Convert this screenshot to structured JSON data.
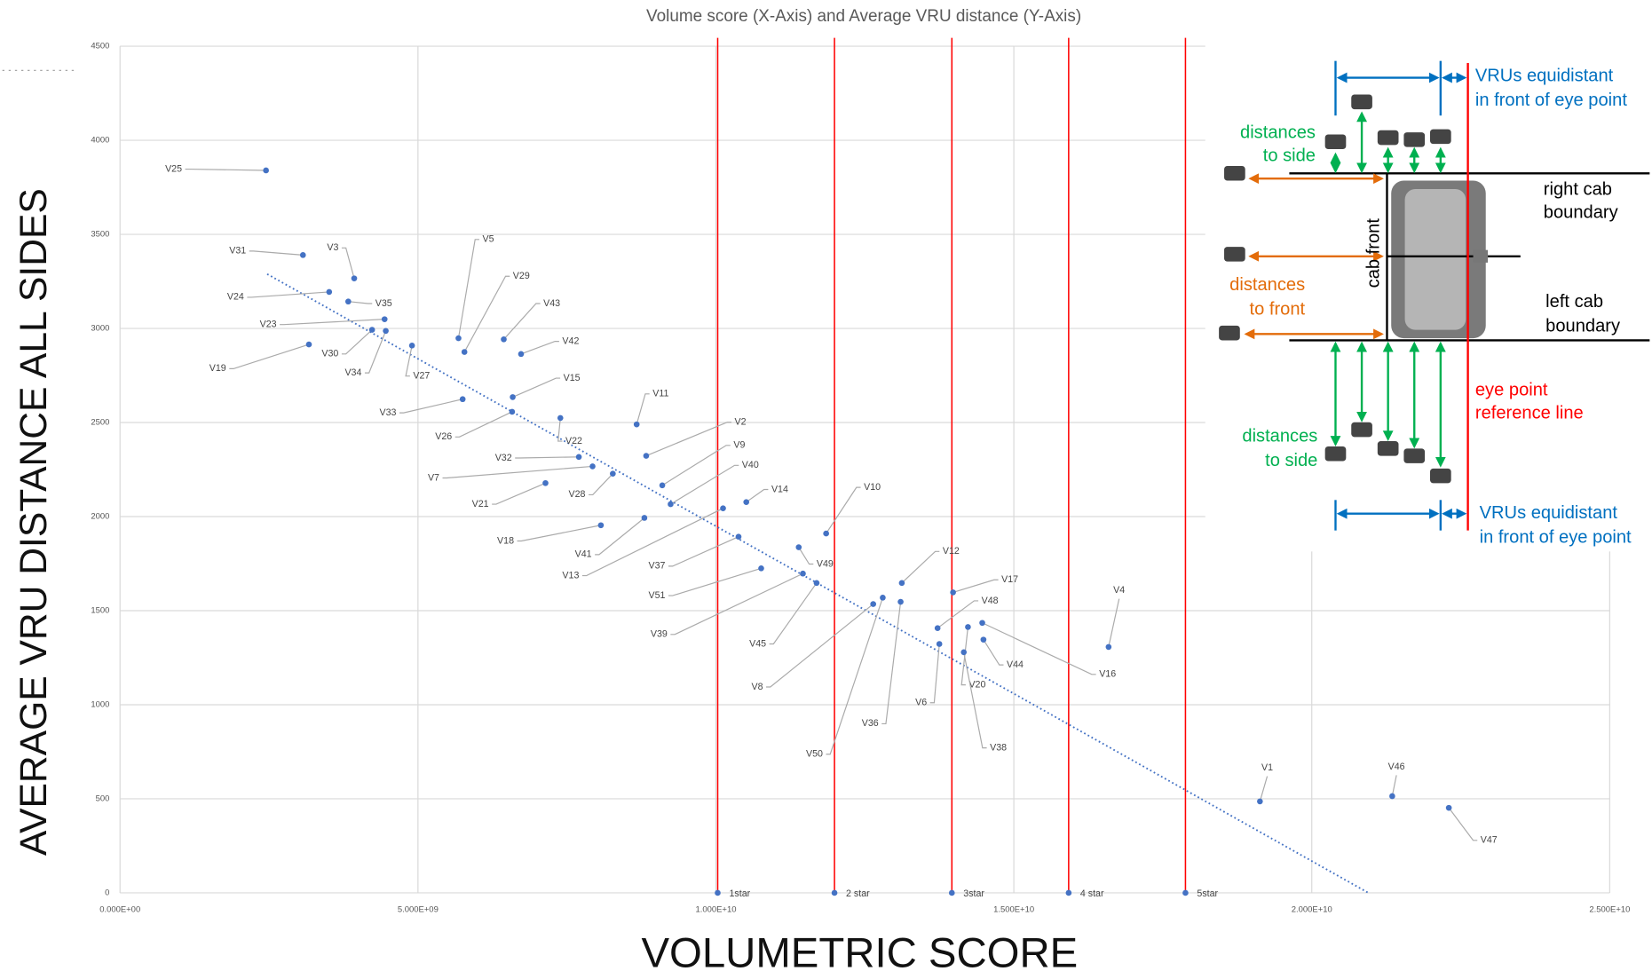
{
  "chart_data": {
    "type": "scatter",
    "title": "Volume score (X-Axis) and Average VRU distance (Y-Axis)",
    "x_label": "VOLUMETRIC SCORE",
    "y_label": "AVERAGE VRU DISTANCE ALL SIDES",
    "xlim": [
      0,
      25000000000
    ],
    "ylim": [
      0,
      4500
    ],
    "xticks": [
      {
        "value": 0,
        "label": "0.000E+00"
      },
      {
        "value": 5000000000,
        "label": "5.000E+09"
      },
      {
        "value": 10000000000,
        "label": "1.000E+10"
      },
      {
        "value": 15000000000,
        "label": "1.500E+10"
      },
      {
        "value": 20000000000,
        "label": "2.000E+10"
      },
      {
        "value": 25000000000,
        "label": "2.500E+10"
      }
    ],
    "yticks": [
      0,
      500,
      1000,
      1500,
      2000,
      2500,
      3000,
      3500,
      4000,
      4500
    ],
    "grid": true,
    "series": [
      {
        "color": "#4472c4",
        "labels": [
          "V25",
          "V31",
          "V3",
          "V24",
          "V35",
          "V23",
          "V30",
          "V34",
          "V19",
          "V27",
          "V5",
          "V29",
          "V43",
          "V42",
          "V15",
          "V33",
          "V26",
          "V22",
          "V11",
          "V2",
          "V32",
          "V7",
          "V28",
          "V9",
          "V40",
          "V21",
          "V14",
          "V18",
          "V41",
          "V10",
          "V13",
          "V37",
          "V51",
          "V49",
          "V39",
          "V45",
          "V12",
          "V17",
          "V8",
          "V50",
          "V36",
          "V48",
          "V6",
          "V20",
          "V44",
          "V38",
          "V16",
          "V4",
          "V1",
          "V46",
          "V47"
        ],
        "x": [
          2450000000,
          3070000000,
          3930000000,
          3510000000,
          3830000000,
          4440000000,
          4230000000,
          4460000000,
          3170000000,
          4900000000,
          5680000000,
          5780000000,
          6440000000,
          6730000000,
          6590000000,
          5750000000,
          6580000000,
          7390000000,
          8670000000,
          8830000000,
          7700000000,
          7930000000,
          8270000000,
          9100000000,
          9240000000,
          7140000000,
          10510000000,
          8070000000,
          8800000000,
          11850000000,
          10120000000,
          10380000000,
          10760000000,
          11390000000,
          11460000000,
          11690000000,
          13120000000,
          13980000000,
          12640000000,
          12800000000,
          13100000000,
          13720000000,
          13750000000,
          14230000000,
          14490000000,
          14160000000,
          14470000000,
          16590000000,
          19130000000,
          21350000000,
          22300000000
        ],
        "values": [
          3840,
          3390,
          3266,
          3194,
          3143,
          3049,
          2993,
          2987,
          2915,
          2909,
          2948,
          2875,
          2942,
          2864,
          2635,
          2624,
          2557,
          2524,
          2490,
          2323,
          2317,
          2267,
          2228,
          2166,
          2066,
          2178,
          2077,
          1954,
          1993,
          1910,
          2044,
          1893,
          1725,
          1837,
          1697,
          1647,
          1647,
          1597,
          1535,
          1569,
          1547,
          1407,
          1323,
          1413,
          1346,
          1279,
          1435,
          1307,
          486,
          514,
          452
        ]
      }
    ],
    "trendline": {
      "color": "#4472c4",
      "x": [
        2470000000,
        20950000000
      ],
      "values": [
        3289,
        0
      ]
    },
    "reference_lines": {
      "color": "#ff0000",
      "x": [
        10030000000,
        11990000000,
        13960000000,
        15920000000,
        17880000000
      ],
      "labels": [
        "1star",
        "2 star",
        "3star",
        "4 star",
        "5star"
      ]
    },
    "inset": {
      "top_note": [
        "VRUs equidistant",
        "in front of eye point"
      ],
      "side_top": [
        "distances",
        "to side"
      ],
      "right_cab": [
        "right cab",
        "boundary"
      ],
      "cab_front": "cab front",
      "to_front": [
        "distances",
        "to front"
      ],
      "left_cab": [
        "left cab",
        "boundary"
      ],
      "eye_ref": [
        "eye point",
        "reference line"
      ],
      "side_bottom": [
        "distances",
        "to side"
      ],
      "bottom_note": [
        "VRUs equidistant",
        "in front of eye point"
      ]
    }
  }
}
